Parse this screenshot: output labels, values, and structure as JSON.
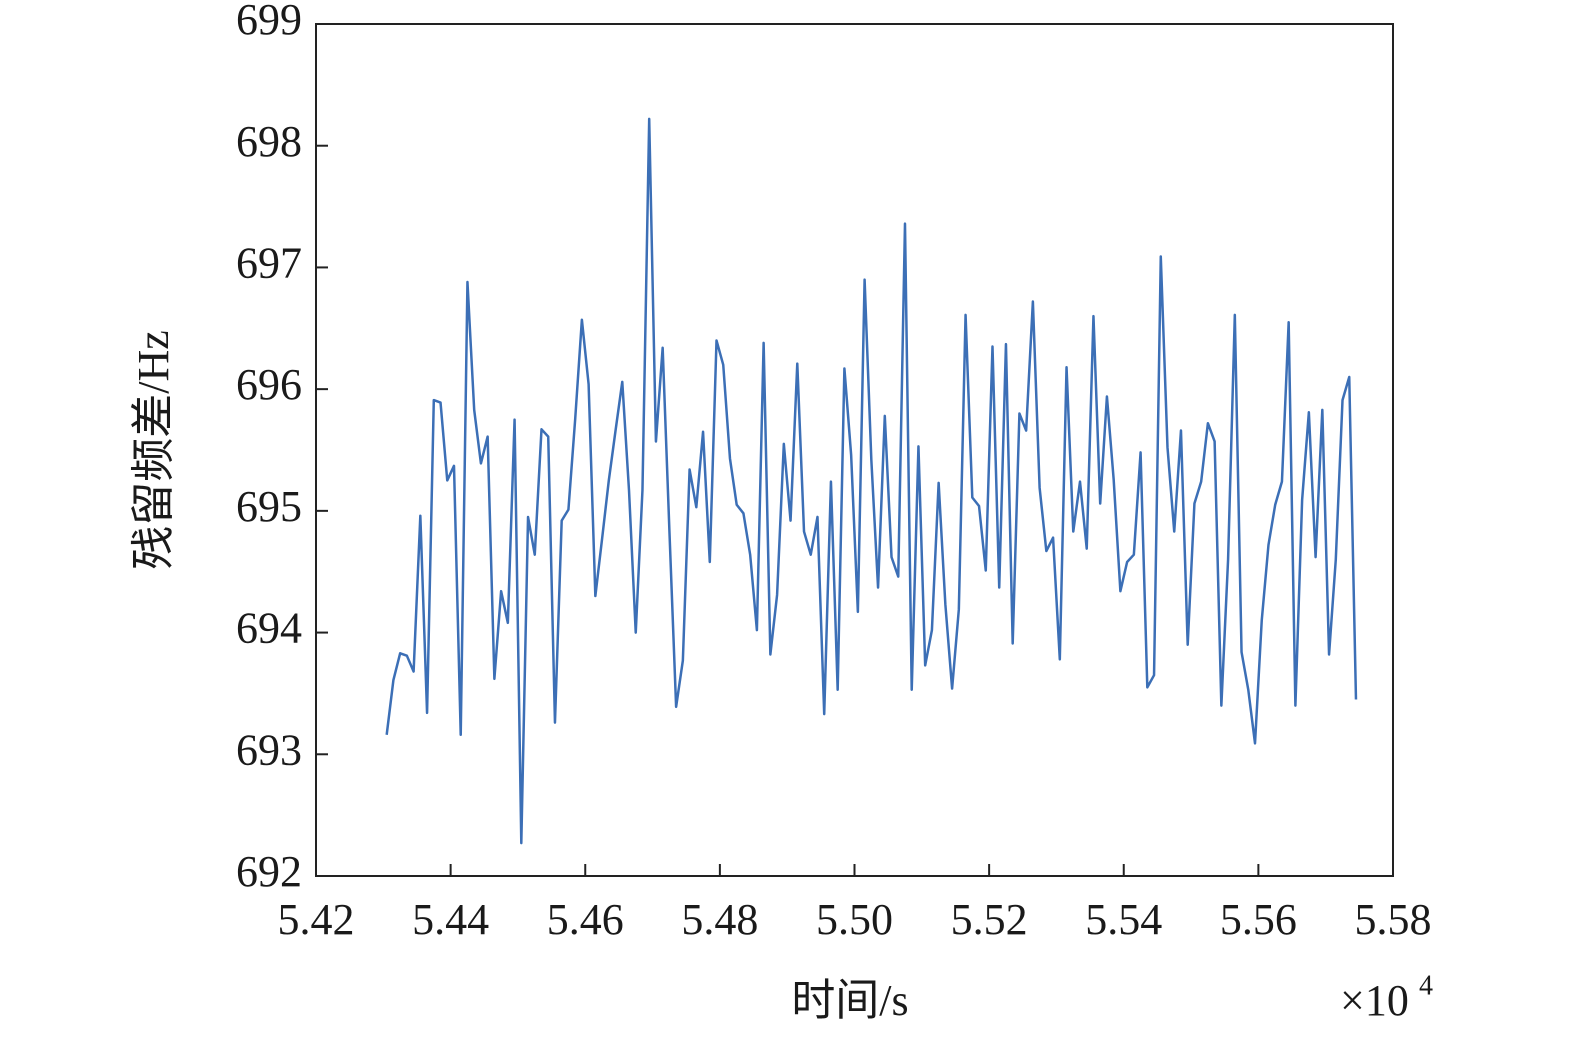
{
  "chart_data": {
    "type": "line",
    "x_label": "时间/s",
    "y_label": "残留频差/Hz",
    "x_offset": "×10",
    "x_offset_exponent": "4",
    "color": "#3c6fb6",
    "xlim": [
      5.42,
      5.58
    ],
    "xticks": [
      5.42,
      5.44,
      5.46,
      5.48,
      {
        "value": 5.5,
        "label": "5.50"
      },
      5.52,
      5.54,
      5.56,
      5.58
    ],
    "ylim": [
      692,
      699
    ],
    "yticks": [
      692,
      693,
      694,
      695,
      696,
      697,
      698,
      699
    ],
    "x": [
      5.4305,
      5.4315,
      5.4325,
      5.4335,
      5.4345,
      5.4355,
      5.4365,
      5.4375,
      5.4385,
      5.4395,
      5.4405,
      5.4415,
      5.4425,
      5.4435,
      5.4445,
      5.4455,
      5.4465,
      5.4475,
      5.4485,
      5.4495,
      5.4505,
      5.4515,
      5.4525,
      5.4535,
      5.4545,
      5.4555,
      5.4565,
      5.4575,
      5.4585,
      5.4595,
      5.4605,
      5.4615,
      5.4625,
      5.4635,
      5.4645,
      5.4655,
      5.4665,
      5.4675,
      5.4685,
      5.4695,
      5.4705,
      5.4715,
      5.4725,
      5.4735,
      5.4745,
      5.4755,
      5.4765,
      5.4775,
      5.4785,
      5.4795,
      5.4805,
      5.4815,
      5.4825,
      5.4835,
      5.4845,
      5.4855,
      5.4865,
      5.4875,
      5.4885,
      5.4895,
      5.4905,
      5.4915,
      5.4925,
      5.4935,
      5.4945,
      5.4955,
      5.4965,
      5.4975,
      5.4985,
      5.4995,
      5.5005,
      5.5015,
      5.5025,
      5.5035,
      5.5045,
      5.5055,
      5.5065,
      5.5075,
      5.5085,
      5.5095,
      5.5105,
      5.5115,
      5.5125,
      5.5135,
      5.5145,
      5.5155,
      5.5165,
      5.5175,
      5.5185,
      5.5195,
      5.5205,
      5.5215,
      5.5225,
      5.5235,
      5.5245,
      5.5255,
      5.5265,
      5.5275,
      5.5285,
      5.5295,
      5.5305,
      5.5315,
      5.5325,
      5.5335,
      5.5345,
      5.5355,
      5.5365,
      5.5375,
      5.5385,
      5.5395,
      5.5405,
      5.5415,
      5.5425,
      5.5435,
      5.5445,
      5.5455,
      5.5465,
      5.5475,
      5.5485,
      5.5495,
      5.5505,
      5.5515,
      5.5525,
      5.5535,
      5.5545,
      5.5555,
      5.5565,
      5.5575,
      5.5585,
      5.5595,
      5.5605,
      5.5615,
      5.5625,
      5.5635,
      5.5645,
      5.5655,
      5.5665,
      5.5675,
      5.5685,
      5.5695,
      5.5705,
      5.5715,
      5.5725,
      5.5735,
      5.5745
    ],
    "values": [
      693.16,
      693.61,
      693.83,
      693.81,
      693.68,
      694.96,
      693.34,
      695.91,
      695.89,
      695.25,
      695.37,
      693.16,
      696.88,
      695.83,
      695.39,
      695.61,
      693.62,
      694.34,
      694.08,
      695.75,
      692.27,
      694.95,
      694.64,
      695.67,
      695.61,
      693.26,
      694.92,
      695.01,
      695.75,
      696.57,
      696.04,
      694.3,
      694.77,
      695.25,
      695.66,
      696.06,
      695.17,
      694.0,
      695.17,
      698.22,
      695.57,
      696.34,
      694.84,
      693.39,
      693.77,
      695.34,
      695.03,
      695.65,
      694.58,
      696.4,
      696.2,
      695.43,
      695.05,
      694.98,
      694.64,
      694.02,
      696.38,
      693.82,
      694.31,
      695.55,
      694.92,
      696.21,
      694.83,
      694.64,
      694.95,
      693.33,
      695.24,
      693.53,
      696.17,
      695.46,
      694.17,
      696.9,
      695.42,
      694.37,
      695.78,
      694.62,
      694.46,
      697.36,
      693.53,
      695.53,
      693.73,
      694.02,
      695.23,
      694.23,
      693.54,
      694.19,
      696.61,
      695.11,
      695.04,
      694.51,
      696.35,
      694.37,
      696.37,
      693.91,
      695.8,
      695.66,
      696.72,
      695.19,
      694.67,
      694.78,
      693.78,
      696.18,
      694.83,
      695.24,
      694.69,
      696.6,
      695.06,
      695.94,
      695.26,
      694.34,
      694.58,
      694.64,
      695.48,
      693.55,
      693.65,
      697.09,
      695.52,
      694.83,
      695.66,
      693.9,
      695.06,
      695.24,
      695.72,
      695.57,
      693.4,
      694.6,
      696.61,
      693.84,
      693.53,
      693.09,
      694.1,
      694.72,
      695.05,
      695.24,
      696.55,
      693.4,
      695.09,
      695.81,
      694.62,
      695.83,
      693.82,
      694.6,
      695.91,
      696.1,
      693.45
    ]
  }
}
